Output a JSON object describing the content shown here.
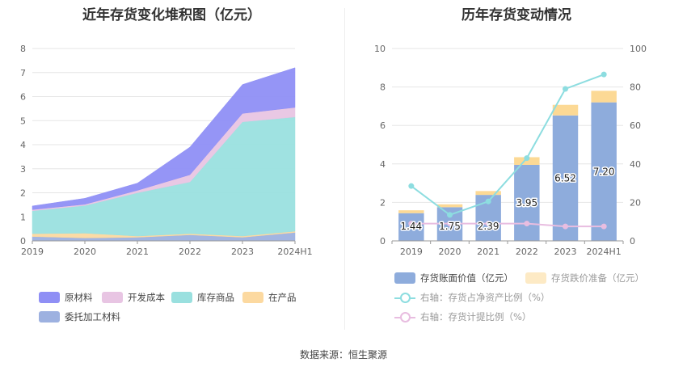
{
  "source_note": "数据来源：恒生聚源",
  "chart_data": [
    {
      "type": "area",
      "stacked": true,
      "title": "近年存货变化堆积图（亿元）",
      "categories": [
        "2019",
        "2020",
        "2021",
        "2022",
        "2023",
        "2024H1"
      ],
      "ylim": [
        0,
        8
      ],
      "yticks": [
        "0",
        "1",
        "2",
        "3",
        "4",
        "5",
        "6",
        "7",
        "8"
      ],
      "grid": true,
      "legend_position": "bottom",
      "series": [
        {
          "name": "委托加工材料",
          "color": "#9db1e0",
          "values": [
            0.18,
            0.12,
            0.15,
            0.25,
            0.15,
            0.35
          ]
        },
        {
          "name": "在产品",
          "color": "#fcd9a0",
          "values": [
            0.12,
            0.2,
            0.05,
            0.05,
            0.05,
            0.05
          ]
        },
        {
          "name": "库存商品",
          "color": "#9ae0df",
          "values": [
            0.95,
            1.15,
            1.8,
            2.15,
            4.75,
            4.75
          ]
        },
        {
          "name": "开发成本",
          "color": "#e8c5e3",
          "values": [
            0.05,
            0.05,
            0.1,
            0.3,
            0.35,
            0.4
          ]
        },
        {
          "name": "原材料",
          "color": "#8f8ff5",
          "values": [
            0.15,
            0.25,
            0.3,
            1.15,
            1.2,
            1.65
          ]
        }
      ],
      "legend_order": [
        "原材料",
        "开发成本",
        "库存商品",
        "在产品",
        "委托加工材料"
      ]
    },
    {
      "type": "bar+line",
      "title": "历年存货变动情况",
      "categories": [
        "2019",
        "2020",
        "2021",
        "2022",
        "2023",
        "2024H1"
      ],
      "left_axis": {
        "ylim": [
          0,
          10
        ],
        "ticks": [
          "0",
          "2",
          "4",
          "6",
          "8",
          "10"
        ]
      },
      "right_axis": {
        "ylim": [
          0,
          100
        ],
        "ticks": [
          "0",
          "20",
          "40",
          "60",
          "80",
          "100"
        ]
      },
      "grid": true,
      "legend_position": "bottom",
      "bars": [
        {
          "name": "存货账面价值（亿元）",
          "color": "#8eacdc",
          "values": [
            1.44,
            1.75,
            2.39,
            3.95,
            6.52,
            7.2
          ],
          "labels": [
            "1.44",
            "1.75",
            "2.39",
            "3.95",
            "6.52",
            "7.20"
          ]
        },
        {
          "name": "存货跌价准备（亿元）",
          "color": "#fcd995",
          "values": [
            0.15,
            0.15,
            0.2,
            0.4,
            0.55,
            0.6
          ]
        }
      ],
      "lines": [
        {
          "name": "右轴：存货占净资产比例（%）",
          "color": "#8ddde0",
          "values": [
            28.5,
            13.5,
            20.5,
            43,
            79,
            86.5
          ]
        },
        {
          "name": "右轴：存货计提比例（%）",
          "color": "#e8bde0",
          "values": [
            9,
            9,
            9,
            9,
            7.5,
            7.5
          ]
        }
      ]
    }
  ]
}
